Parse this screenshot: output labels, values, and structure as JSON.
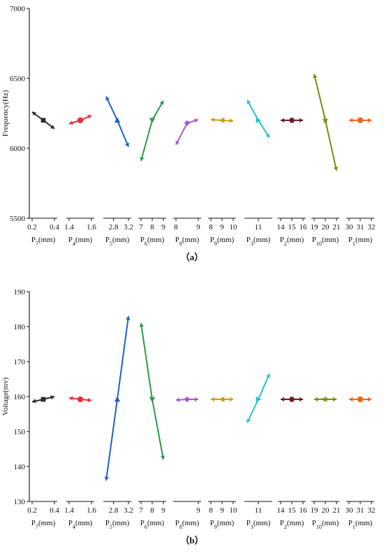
{
  "chart_data": [
    {
      "type": "line",
      "panel_label": "（a）",
      "ylabel": "Frequency(Hz)",
      "ylim": [
        5500,
        7000
      ],
      "yticks": [
        "5500",
        "6000",
        "6500",
        "7000"
      ],
      "panels": [
        {
          "sub": "7",
          "ticks": [
            "0.2",
            "0.4"
          ],
          "x": [
            0.2,
            0.3,
            0.4
          ],
          "values": [
            6260,
            6200,
            6140
          ],
          "color": "#2b2b2b",
          "marker": "square"
        },
        {
          "sub": "4",
          "ticks": [
            "1.4",
            "1.6"
          ],
          "x": [
            1.4,
            1.5,
            1.6
          ],
          "values": [
            6175,
            6200,
            6235
          ],
          "color": "#e8303c",
          "marker": "circle"
        },
        {
          "sub": "5",
          "ticks": [
            "2.8",
            "3.2"
          ],
          "x": [
            2.6,
            2.9,
            3.2
          ],
          "values": [
            6370,
            6200,
            6010
          ],
          "color": "#1f5fc4",
          "marker": "triangle-up"
        },
        {
          "sub": "6",
          "ticks": [
            "7",
            "8",
            "9"
          ],
          "x": [
            7,
            8,
            9
          ],
          "values": [
            5910,
            6200,
            6340
          ],
          "color": "#2a9a4a",
          "marker": "triangle-down"
        },
        {
          "sub": "8",
          "ticks": [
            "8",
            "9"
          ],
          "x": [
            8,
            8.5,
            9
          ],
          "values": [
            6025,
            6180,
            6205
          ],
          "color": "#a45ad6",
          "marker": "diamond"
        },
        {
          "sub": "9",
          "ticks": [
            "8",
            "9",
            "10"
          ],
          "x": [
            8,
            9,
            10
          ],
          "values": [
            6205,
            6200,
            6195
          ],
          "color": "#c8a014",
          "marker": "triangle-left"
        },
        {
          "sub": "3",
          "ticks": [
            "11"
          ],
          "x": [
            10,
            11,
            12
          ],
          "values": [
            6345,
            6200,
            6075
          ],
          "color": "#22c4cc",
          "marker": "triangle-right"
        },
        {
          "sub": "2",
          "ticks": [
            "14",
            "15",
            "16"
          ],
          "x": [
            14,
            15,
            16
          ],
          "values": [
            6200,
            6200,
            6200
          ],
          "color": "#6b1f24",
          "marker": "hexagon"
        },
        {
          "sub": "10",
          "ticks": [
            "19",
            "20",
            "21"
          ],
          "x": [
            19,
            20,
            21
          ],
          "values": [
            6530,
            6200,
            5840
          ],
          "color": "#7a8a10",
          "marker": "star"
        },
        {
          "sub": "1",
          "ticks": [
            "30",
            "31",
            "32"
          ],
          "x": [
            30,
            31,
            32
          ],
          "values": [
            6200,
            6200,
            6200
          ],
          "color": "#f06820",
          "marker": "circle"
        }
      ]
    },
    {
      "type": "line",
      "panel_label": "（b）",
      "ylabel": "Voltage(mv)",
      "ylim": [
        130,
        190
      ],
      "yticks": [
        "130",
        "140",
        "150",
        "160",
        "170",
        "180",
        "190"
      ],
      "panels": [
        {
          "sub": "7",
          "ticks": [
            "0.2",
            "0.4"
          ],
          "x": [
            0.2,
            0.3,
            0.4
          ],
          "values": [
            158.5,
            159.2,
            160.0
          ],
          "color": "#2b2b2b",
          "marker": "square"
        },
        {
          "sub": "4",
          "ticks": [
            "1.4",
            "1.6"
          ],
          "x": [
            1.4,
            1.5,
            1.6
          ],
          "values": [
            159.6,
            159.2,
            158.9
          ],
          "color": "#e8303c",
          "marker": "circle"
        },
        {
          "sub": "5",
          "ticks": [
            "2.8",
            "3.2"
          ],
          "x": [
            2.6,
            2.9,
            3.2
          ],
          "values": [
            136.0,
            159.2,
            183.0
          ],
          "color": "#1f5fc4",
          "marker": "triangle-up"
        },
        {
          "sub": "6",
          "ticks": [
            "7",
            "8",
            "9"
          ],
          "x": [
            7,
            8,
            9
          ],
          "values": [
            181.0,
            159.2,
            142.0
          ],
          "color": "#2a9a4a",
          "marker": "triangle-down"
        },
        {
          "sub": "8",
          "ticks": [
            "9"
          ],
          "x": [
            8,
            8.5,
            9
          ],
          "values": [
            159.0,
            159.2,
            159.2
          ],
          "color": "#a45ad6",
          "marker": "diamond"
        },
        {
          "sub": "9",
          "ticks": [
            "8",
            "9",
            "10"
          ],
          "x": [
            8,
            9,
            10
          ],
          "values": [
            159.2,
            159.2,
            159.2
          ],
          "color": "#c8a014",
          "marker": "triangle-left"
        },
        {
          "sub": "3",
          "ticks": [
            "11"
          ],
          "x": [
            10,
            11,
            12
          ],
          "values": [
            152.5,
            159.2,
            166.5
          ],
          "color": "#22c4cc",
          "marker": "triangle-right"
        },
        {
          "sub": "2",
          "ticks": [
            "14",
            "15",
            "16"
          ],
          "x": [
            14,
            15,
            16
          ],
          "values": [
            159.2,
            159.2,
            159.2
          ],
          "color": "#6b1f24",
          "marker": "hexagon"
        },
        {
          "sub": "10",
          "ticks": [
            "19",
            "20",
            "21"
          ],
          "x": [
            19,
            20,
            21
          ],
          "values": [
            159.2,
            159.2,
            159.2
          ],
          "color": "#7a8a10",
          "marker": "star"
        },
        {
          "sub": "1",
          "ticks": [
            "30",
            "31",
            "32"
          ],
          "x": [
            30,
            31,
            32
          ],
          "values": [
            159.2,
            159.2,
            159.2
          ],
          "color": "#f06820",
          "marker": "circle"
        }
      ]
    }
  ]
}
